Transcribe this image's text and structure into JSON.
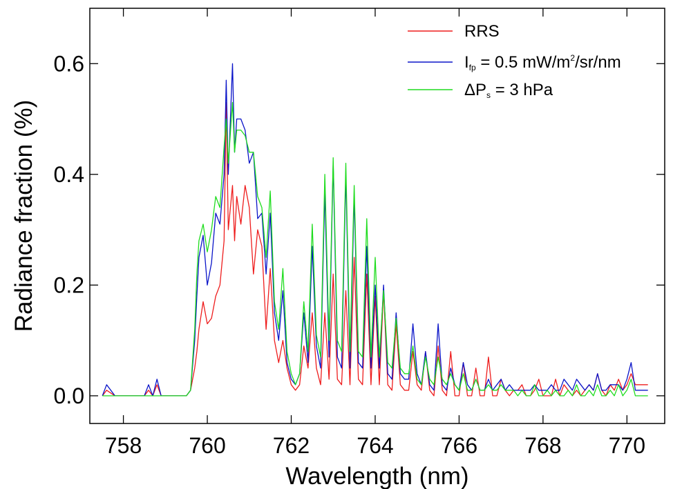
{
  "chart_data": {
    "type": "line",
    "xlabel": "Wavelength (nm)",
    "ylabel": "Radiance fraction (%)",
    "xlim": [
      757.2,
      770.9
    ],
    "ylim": [
      -0.05,
      0.7
    ],
    "x_ticks": [
      "758",
      "760",
      "762",
      "764",
      "766",
      "768",
      "770"
    ],
    "y_ticks": [
      "0.0",
      "0.2",
      "0.4",
      "0.6"
    ],
    "x_tick_values": [
      758,
      760,
      762,
      764,
      766,
      768,
      770
    ],
    "y_tick_values": [
      0.0,
      0.2,
      0.4,
      0.6
    ],
    "legend_position": "top-right",
    "legend": [
      {
        "id": "rrs",
        "text": "RRS",
        "color": "#ee1c1c"
      },
      {
        "id": "ifp",
        "prefix": "I",
        "sub": "fp",
        "middle": " = 0.5 mW/m",
        "sup": "2",
        "suffix": "/sr/nm",
        "color": "#0a14c8"
      },
      {
        "id": "dps",
        "prefix": "ΔP",
        "sub": "s",
        "suffix": " = 3 hPa",
        "color": "#1edc1e"
      }
    ],
    "series": [
      {
        "name": "RRS",
        "color": "#ee1c1c",
        "x": [
          757.5,
          757.6,
          757.8,
          758.0,
          758.5,
          758.6,
          758.7,
          758.8,
          758.9,
          759.0,
          759.4,
          759.5,
          759.6,
          759.7,
          759.75,
          759.8,
          759.9,
          760.0,
          760.1,
          760.2,
          760.3,
          760.4,
          760.45,
          760.5,
          760.6,
          760.65,
          760.7,
          760.8,
          760.9,
          761.0,
          761.1,
          761.2,
          761.3,
          761.4,
          761.5,
          761.6,
          761.7,
          761.8,
          761.9,
          762.0,
          762.1,
          762.2,
          762.3,
          762.4,
          762.5,
          762.6,
          762.7,
          762.8,
          762.9,
          763.0,
          763.1,
          763.2,
          763.3,
          763.4,
          763.5,
          763.6,
          763.7,
          763.8,
          763.9,
          764.0,
          764.1,
          764.2,
          764.3,
          764.4,
          764.5,
          764.6,
          764.7,
          764.8,
          764.9,
          765.0,
          765.1,
          765.2,
          765.3,
          765.4,
          765.5,
          765.6,
          765.7,
          765.8,
          765.9,
          766.0,
          766.1,
          766.2,
          766.3,
          766.4,
          766.5,
          766.6,
          766.7,
          766.8,
          766.9,
          767.0,
          767.1,
          767.2,
          767.3,
          767.4,
          767.5,
          767.6,
          767.7,
          767.8,
          767.9,
          768.0,
          768.1,
          768.2,
          768.3,
          768.4,
          768.5,
          768.6,
          768.7,
          768.8,
          768.9,
          769.0,
          769.1,
          769.2,
          769.3,
          769.4,
          769.5,
          769.6,
          769.7,
          769.8,
          769.9,
          770.0,
          770.1,
          770.2,
          770.3,
          770.5
        ],
        "y": [
          0.0,
          0.01,
          0.0,
          0.0,
          0.0,
          0.01,
          0.0,
          0.02,
          0.0,
          0.0,
          0.0,
          0.0,
          0.01,
          0.05,
          0.08,
          0.12,
          0.17,
          0.13,
          0.14,
          0.18,
          0.2,
          0.28,
          0.53,
          0.3,
          0.38,
          0.28,
          0.36,
          0.31,
          0.38,
          0.34,
          0.22,
          0.3,
          0.27,
          0.12,
          0.23,
          0.1,
          0.06,
          0.1,
          0.05,
          0.02,
          0.01,
          0.02,
          0.09,
          0.05,
          0.15,
          0.05,
          0.02,
          0.15,
          0.03,
          0.22,
          0.03,
          0.02,
          0.19,
          0.02,
          0.25,
          0.03,
          0.02,
          0.22,
          0.02,
          0.18,
          0.02,
          0.19,
          0.02,
          0.01,
          0.13,
          0.02,
          0.01,
          0.01,
          0.08,
          0.02,
          0.01,
          0.08,
          0.01,
          0.0,
          0.09,
          0.01,
          0.0,
          0.08,
          0.0,
          0.0,
          0.06,
          0.0,
          0.0,
          0.05,
          0.0,
          0.0,
          0.07,
          0.0,
          0.0,
          0.03,
          0.01,
          0.0,
          0.01,
          0.01,
          0.02,
          0.0,
          0.0,
          0.01,
          0.03,
          0.0,
          0.0,
          0.0,
          0.03,
          0.0,
          0.02,
          0.01,
          0.0,
          0.01,
          0.0,
          0.01,
          0.02,
          0.01,
          0.04,
          0.01,
          0.0,
          0.02,
          0.01,
          0.03,
          0.01,
          0.02,
          0.04,
          0.02,
          0.02,
          0.02
        ]
      },
      {
        "name": "Ifp = 0.5 mW/m2/sr/nm",
        "color": "#0a14c8",
        "x": [
          757.5,
          757.6,
          757.8,
          758.0,
          758.5,
          758.6,
          758.7,
          758.8,
          758.9,
          759.0,
          759.4,
          759.5,
          759.6,
          759.7,
          759.75,
          759.8,
          759.9,
          760.0,
          760.1,
          760.2,
          760.3,
          760.4,
          760.45,
          760.5,
          760.6,
          760.65,
          760.7,
          760.8,
          760.9,
          761.0,
          761.1,
          761.2,
          761.3,
          761.4,
          761.5,
          761.6,
          761.7,
          761.8,
          761.9,
          762.0,
          762.1,
          762.2,
          762.3,
          762.4,
          762.5,
          762.6,
          762.7,
          762.8,
          762.9,
          763.0,
          763.1,
          763.2,
          763.3,
          763.4,
          763.5,
          763.6,
          763.7,
          763.8,
          763.9,
          764.0,
          764.1,
          764.2,
          764.3,
          764.4,
          764.5,
          764.6,
          764.7,
          764.8,
          764.9,
          765.0,
          765.1,
          765.2,
          765.3,
          765.4,
          765.5,
          765.6,
          765.7,
          765.8,
          765.9,
          766.0,
          766.1,
          766.2,
          766.3,
          766.4,
          766.5,
          766.6,
          766.7,
          766.8,
          766.9,
          767.0,
          767.1,
          767.2,
          767.3,
          767.4,
          767.5,
          767.6,
          767.7,
          767.8,
          767.9,
          768.0,
          768.1,
          768.2,
          768.3,
          768.4,
          768.5,
          768.6,
          768.7,
          768.8,
          768.9,
          769.0,
          769.1,
          769.2,
          769.3,
          769.4,
          769.5,
          769.6,
          769.7,
          769.8,
          769.9,
          770.0,
          770.1,
          770.2,
          770.3,
          770.5
        ],
        "y": [
          0.0,
          0.02,
          0.0,
          0.0,
          0.0,
          0.02,
          0.0,
          0.03,
          0.0,
          0.0,
          0.0,
          0.0,
          0.01,
          0.1,
          0.18,
          0.25,
          0.29,
          0.2,
          0.24,
          0.33,
          0.31,
          0.4,
          0.57,
          0.4,
          0.6,
          0.44,
          0.5,
          0.5,
          0.48,
          0.42,
          0.44,
          0.32,
          0.33,
          0.22,
          0.33,
          0.15,
          0.1,
          0.19,
          0.06,
          0.03,
          0.02,
          0.04,
          0.15,
          0.06,
          0.27,
          0.09,
          0.05,
          0.37,
          0.07,
          0.42,
          0.07,
          0.05,
          0.4,
          0.05,
          0.36,
          0.06,
          0.05,
          0.27,
          0.05,
          0.2,
          0.05,
          0.2,
          0.04,
          0.03,
          0.15,
          0.04,
          0.03,
          0.03,
          0.13,
          0.04,
          0.02,
          0.08,
          0.02,
          0.01,
          0.13,
          0.02,
          0.01,
          0.05,
          0.02,
          0.01,
          0.06,
          0.02,
          0.01,
          0.03,
          0.01,
          0.01,
          0.03,
          0.01,
          0.02,
          0.03,
          0.01,
          0.02,
          0.01,
          0.01,
          0.01,
          0.01,
          0.01,
          0.02,
          0.01,
          0.01,
          0.01,
          0.02,
          0.01,
          0.01,
          0.03,
          0.02,
          0.01,
          0.03,
          0.02,
          0.01,
          0.02,
          0.01,
          0.04,
          0.01,
          0.01,
          0.02,
          0.02,
          0.02,
          0.01,
          0.03,
          0.06,
          0.01,
          0.01,
          0.01
        ]
      },
      {
        "name": "ΔPs = 3 hPa",
        "color": "#1edc1e",
        "x": [
          757.5,
          757.6,
          757.8,
          758.0,
          758.5,
          758.6,
          758.7,
          758.8,
          758.9,
          759.0,
          759.4,
          759.5,
          759.6,
          759.7,
          759.75,
          759.8,
          759.9,
          760.0,
          760.1,
          760.2,
          760.3,
          760.4,
          760.45,
          760.5,
          760.6,
          760.65,
          760.7,
          760.8,
          760.9,
          761.0,
          761.1,
          761.2,
          761.3,
          761.4,
          761.5,
          761.6,
          761.7,
          761.8,
          761.9,
          762.0,
          762.1,
          762.2,
          762.3,
          762.4,
          762.5,
          762.6,
          762.7,
          762.8,
          762.9,
          763.0,
          763.1,
          763.2,
          763.3,
          763.4,
          763.5,
          763.6,
          763.7,
          763.8,
          763.9,
          764.0,
          764.1,
          764.2,
          764.3,
          764.4,
          764.5,
          764.6,
          764.7,
          764.8,
          764.9,
          765.0,
          765.1,
          765.2,
          765.3,
          765.4,
          765.5,
          765.6,
          765.7,
          765.8,
          765.9,
          766.0,
          766.1,
          766.2,
          766.3,
          766.4,
          766.5,
          766.6,
          766.7,
          766.8,
          766.9,
          767.0,
          767.1,
          767.2,
          767.3,
          767.4,
          767.5,
          767.6,
          767.7,
          767.8,
          767.9,
          768.0,
          768.1,
          768.2,
          768.3,
          768.4,
          768.5,
          768.6,
          768.7,
          768.8,
          768.9,
          769.0,
          769.1,
          769.2,
          769.3,
          769.4,
          769.5,
          769.6,
          769.7,
          769.8,
          769.9,
          770.0,
          770.1,
          770.2,
          770.3,
          770.5
        ],
        "y": [
          0.0,
          0.0,
          0.0,
          0.0,
          0.0,
          0.0,
          0.0,
          0.0,
          0.0,
          0.0,
          0.0,
          0.0,
          0.01,
          0.12,
          0.22,
          0.28,
          0.31,
          0.26,
          0.3,
          0.36,
          0.34,
          0.45,
          0.5,
          0.42,
          0.53,
          0.44,
          0.48,
          0.48,
          0.47,
          0.44,
          0.44,
          0.36,
          0.34,
          0.25,
          0.37,
          0.17,
          0.12,
          0.23,
          0.08,
          0.04,
          0.02,
          0.04,
          0.17,
          0.08,
          0.31,
          0.11,
          0.07,
          0.4,
          0.1,
          0.43,
          0.1,
          0.08,
          0.42,
          0.08,
          0.38,
          0.08,
          0.07,
          0.32,
          0.07,
          0.25,
          0.07,
          0.19,
          0.06,
          0.05,
          0.14,
          0.05,
          0.04,
          0.04,
          0.09,
          0.03,
          0.02,
          0.07,
          0.03,
          0.02,
          0.07,
          0.03,
          0.02,
          0.04,
          0.02,
          0.01,
          0.04,
          0.01,
          0.01,
          0.03,
          0.01,
          0.01,
          0.02,
          0.01,
          0.01,
          0.02,
          0.01,
          0.01,
          0.01,
          0.0,
          0.01,
          0.0,
          0.0,
          0.02,
          0.0,
          0.0,
          0.01,
          0.0,
          0.01,
          0.0,
          0.0,
          0.01,
          0.0,
          0.02,
          0.0,
          0.0,
          0.01,
          0.0,
          0.02,
          0.0,
          0.0,
          0.01,
          0.0,
          0.02,
          0.0,
          0.01,
          0.03,
          0.0,
          0.0,
          0.0
        ]
      }
    ]
  }
}
